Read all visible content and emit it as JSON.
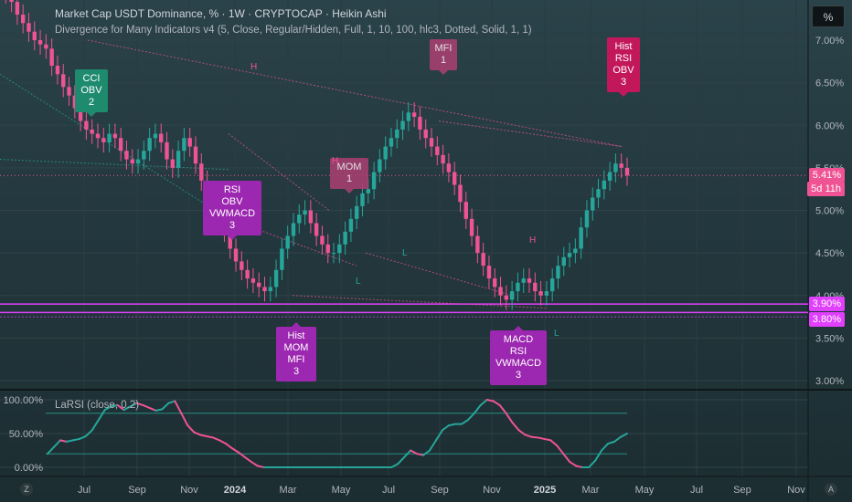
{
  "header": {
    "title": "Market Cap USDT Dominance, % · 1W · CRYPTOCAP · Heikin Ashi",
    "indicator": "Divergence for Many Indicators v4 (5, Close, Regular/Hidden, Full, 1, 10, 100, hlc3, Dotted, Solid, 1, 1)",
    "unit_button": "%"
  },
  "price_axis": {
    "ticks": [
      "7.00%",
      "6.50%",
      "6.00%",
      "5.50%",
      "5.00%",
      "4.50%",
      "4.00%",
      "3.50%",
      "3.00%"
    ],
    "current_price": "5.41%",
    "countdown": "5d 11h",
    "level_1": "3.90%",
    "level_2": "3.80%"
  },
  "lower_pane": {
    "title": "LaRSI (close, 0.2)",
    "ticks": [
      "100.00%",
      "50.00%",
      "0.00%"
    ]
  },
  "time_axis": {
    "labels": [
      "Jul",
      "Sep",
      "Nov",
      "2024",
      "Mar",
      "May",
      "Jul",
      "Sep",
      "Nov",
      "2025",
      "Mar",
      "May",
      "Jul",
      "Sep",
      "Nov"
    ]
  },
  "callouts": {
    "cci_obv": "CCI\nOBV\n2",
    "rsi_obv_vwmacd": "RSI\nOBV\nVWMACD\n3",
    "hist_mom_mfi": "Hist\nMOM\nMFI\n3",
    "mom": "MOM\n1",
    "mfi": "MFI\n1",
    "macd_rsi_vwmacd": "MACD\nRSI\nVWMACD\n3",
    "hist_rsi_obv": "Hist\nRSI\nOBV\n3"
  },
  "markers": {
    "high": "H",
    "low": "L"
  },
  "corner_buttons": {
    "left": "Z",
    "right": "A"
  },
  "colors": {
    "bull": "#26a69a",
    "bear": "#ef5394",
    "bear_callout": "#c2185b",
    "bull_callout": "#1e8a6e",
    "purple_callout": "#9c27b0",
    "level": "#e040fb",
    "larsi_bull": "#26a69a",
    "larsi_bear": "#ef5394"
  },
  "chart_data": [
    {
      "type": "candlestick",
      "title": "Market Cap USDT Dominance, % · 1W · CRYPTOCAP · Heikin Ashi",
      "xlabel": "",
      "ylabel": "",
      "ylim": [
        2.9,
        7.4
      ],
      "x_labels": [
        "Jul",
        "Sep",
        "Nov",
        "2024",
        "Mar",
        "May",
        "Jul",
        "Sep",
        "Nov",
        "2025",
        "Mar",
        "May",
        "Jul",
        "Sep",
        "Nov"
      ],
      "y_ticks": [
        7.0,
        6.5,
        6.0,
        5.5,
        5.0,
        4.5,
        4.0,
        3.5,
        3.0
      ],
      "last_value": 5.41,
      "horizontal_levels": [
        3.9,
        3.8
      ],
      "close_series": [
        7.6,
        7.55,
        7.45,
        7.3,
        7.2,
        7.1,
        7.0,
        6.95,
        6.9,
        6.7,
        6.6,
        6.45,
        6.35,
        6.2,
        6.05,
        5.95,
        5.9,
        5.85,
        5.8,
        5.9,
        5.85,
        5.7,
        5.6,
        5.55,
        5.6,
        5.7,
        5.85,
        5.9,
        5.8,
        5.6,
        5.5,
        5.7,
        5.85,
        5.75,
        5.55,
        5.35,
        5.2,
        5.05,
        4.9,
        4.75,
        4.55,
        4.4,
        4.3,
        4.2,
        4.15,
        4.1,
        4.05,
        4.1,
        4.3,
        4.55,
        4.7,
        4.85,
        4.95,
        5.0,
        4.85,
        4.7,
        4.6,
        4.5,
        4.5,
        4.6,
        4.75,
        4.9,
        5.05,
        5.2,
        5.25,
        5.45,
        5.6,
        5.75,
        5.85,
        5.95,
        6.05,
        6.15,
        6.1,
        5.95,
        5.85,
        5.75,
        5.65,
        5.55,
        5.45,
        5.3,
        5.1,
        4.9,
        4.7,
        4.5,
        4.35,
        4.2,
        4.1,
        4.0,
        3.95,
        4.05,
        4.15,
        4.2,
        4.15,
        4.05,
        4.0,
        4.05,
        4.2,
        4.35,
        4.45,
        4.5,
        4.55,
        4.8,
        5.0,
        5.15,
        5.25,
        5.35,
        5.45,
        5.55,
        5.5,
        5.41
      ]
    },
    {
      "type": "line",
      "title": "LaRSI (close, 0.2)",
      "ylim": [
        0,
        100
      ],
      "y_ticks": [
        100,
        50,
        0
      ],
      "values": [
        20,
        30,
        40,
        38,
        40,
        42,
        46,
        55,
        70,
        85,
        90,
        92,
        85,
        90,
        95,
        92,
        88,
        84,
        86,
        95,
        98,
        80,
        62,
        52,
        48,
        46,
        44,
        40,
        35,
        28,
        22,
        15,
        8,
        2,
        0,
        0,
        0,
        0,
        0,
        0,
        0,
        0,
        0,
        0,
        0,
        0,
        0,
        0,
        0,
        0,
        0,
        0,
        0,
        0,
        0,
        5,
        15,
        25,
        20,
        18,
        25,
        40,
        55,
        62,
        64,
        64,
        70,
        80,
        92,
        100,
        98,
        92,
        80,
        66,
        55,
        48,
        45,
        44,
        42,
        40,
        32,
        20,
        8,
        2,
        0,
        0,
        10,
        25,
        35,
        38,
        45,
        50
      ]
    }
  ]
}
